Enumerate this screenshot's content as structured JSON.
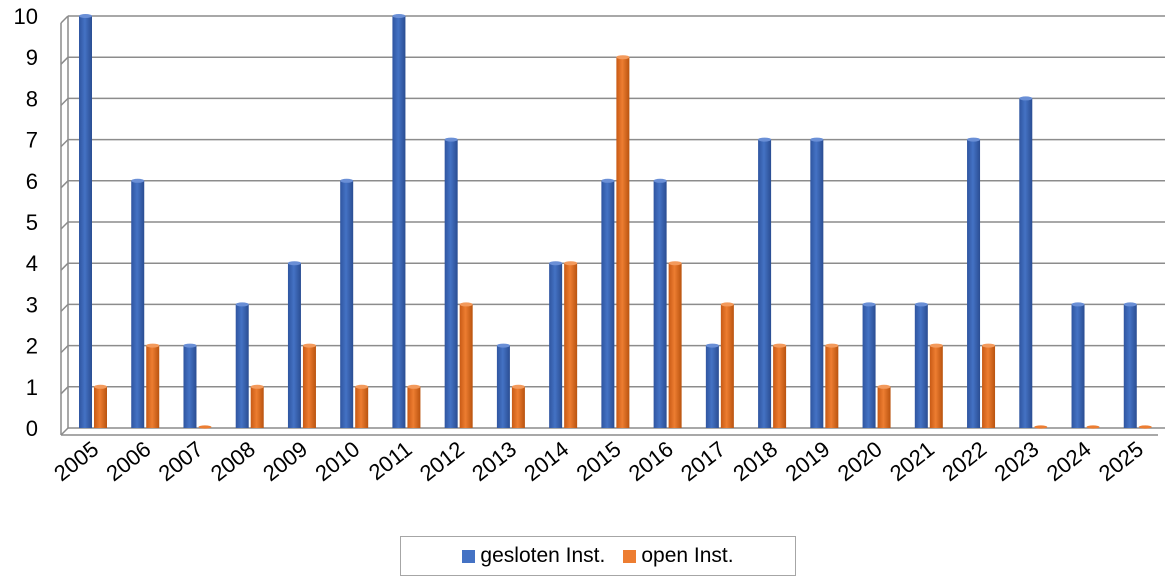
{
  "chart_data": {
    "type": "bar",
    "categories": [
      "2005",
      "2006",
      "2007",
      "2008",
      "2009",
      "2010",
      "2011",
      "2012",
      "2013",
      "2014",
      "2015",
      "2016",
      "2017",
      "2018",
      "2019",
      "2020",
      "2021",
      "2022",
      "2023",
      "2024",
      "2025"
    ],
    "series": [
      {
        "name": "gesloten Inst.",
        "color": "#4472c4",
        "values": [
          10,
          6,
          2,
          3,
          4,
          6,
          10,
          7,
          2,
          4,
          6,
          6,
          2,
          7,
          7,
          3,
          3,
          7,
          8,
          3,
          3
        ]
      },
      {
        "name": "open Inst.",
        "color": "#ed7d31",
        "values": [
          1,
          2,
          0,
          1,
          2,
          1,
          1,
          3,
          1,
          4,
          9,
          4,
          3,
          2,
          2,
          1,
          2,
          2,
          0,
          0,
          0
        ]
      }
    ],
    "ylim": [
      0,
      10
    ],
    "yticks": [
      "0",
      "1",
      "2",
      "3",
      "4",
      "5",
      "6",
      "7",
      "8",
      "9",
      "10"
    ],
    "grid": true,
    "legend_position": "bottom"
  }
}
